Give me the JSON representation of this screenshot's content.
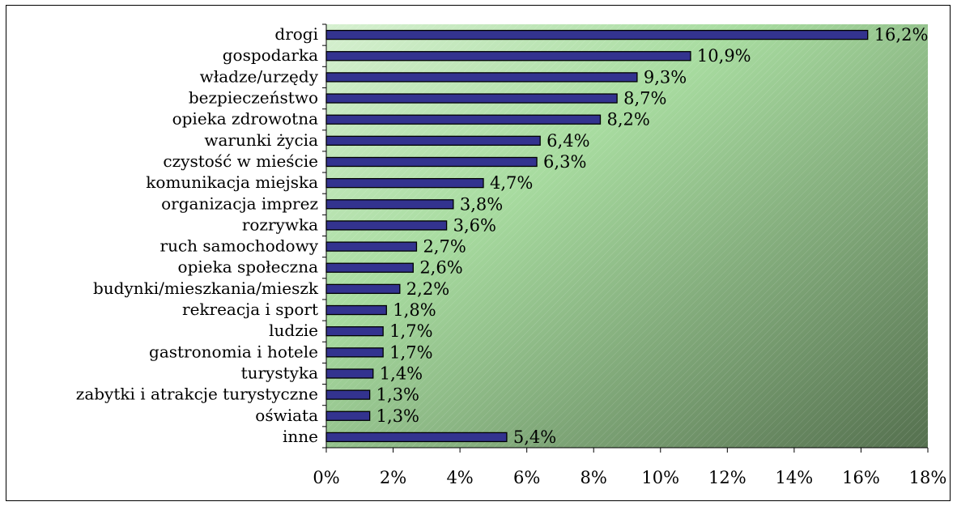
{
  "chart_data": {
    "type": "bar",
    "orientation": "horizontal",
    "categories": [
      "drogi",
      "gospodarka",
      "władze/urzędy",
      "bezpieczeństwo",
      "opieka zdrowotna",
      "warunki życia",
      "czystość w mieście",
      "komunikacja miejska",
      "organizacja imprez",
      "rozrywka",
      "ruch samochodowy",
      "opieka społeczna",
      "budynki/mieszkania/mieszk",
      "rekreacja i sport",
      "ludzie",
      "gastronomia i hotele",
      "turystyka",
      "zabytki i atrakcje turystyczne",
      "oświata",
      "inne"
    ],
    "values": [
      16.2,
      10.9,
      9.3,
      8.7,
      8.2,
      6.4,
      6.3,
      4.7,
      3.8,
      3.6,
      2.7,
      2.6,
      2.2,
      1.8,
      1.7,
      1.7,
      1.4,
      1.3,
      1.3,
      5.4
    ],
    "value_labels": [
      "16,2%",
      "10,9%",
      "9,3%",
      "8,7%",
      "8,2%",
      "6,4%",
      "6,3%",
      "4,7%",
      "3,8%",
      "3,6%",
      "2,7%",
      "2,6%",
      "2,2%",
      "1,8%",
      "1,7%",
      "1,7%",
      "1,4%",
      "1,3%",
      "1,3%",
      "5,4%"
    ],
    "xlim": [
      0,
      18
    ],
    "x_ticks": [
      0,
      2,
      4,
      6,
      8,
      10,
      12,
      14,
      16,
      18
    ],
    "x_tick_labels": [
      "0%",
      "2%",
      "4%",
      "6%",
      "8%",
      "10%",
      "12%",
      "14%",
      "16%",
      "18%"
    ],
    "grid": false,
    "legend": "none",
    "colors": {
      "bar_fill": "#33338f",
      "bar_stroke": "#000000",
      "plot_bg_light": "#d6f0d0",
      "plot_bg_mid": "#a8dca0",
      "plot_bg_dark": "#55704f"
    }
  }
}
